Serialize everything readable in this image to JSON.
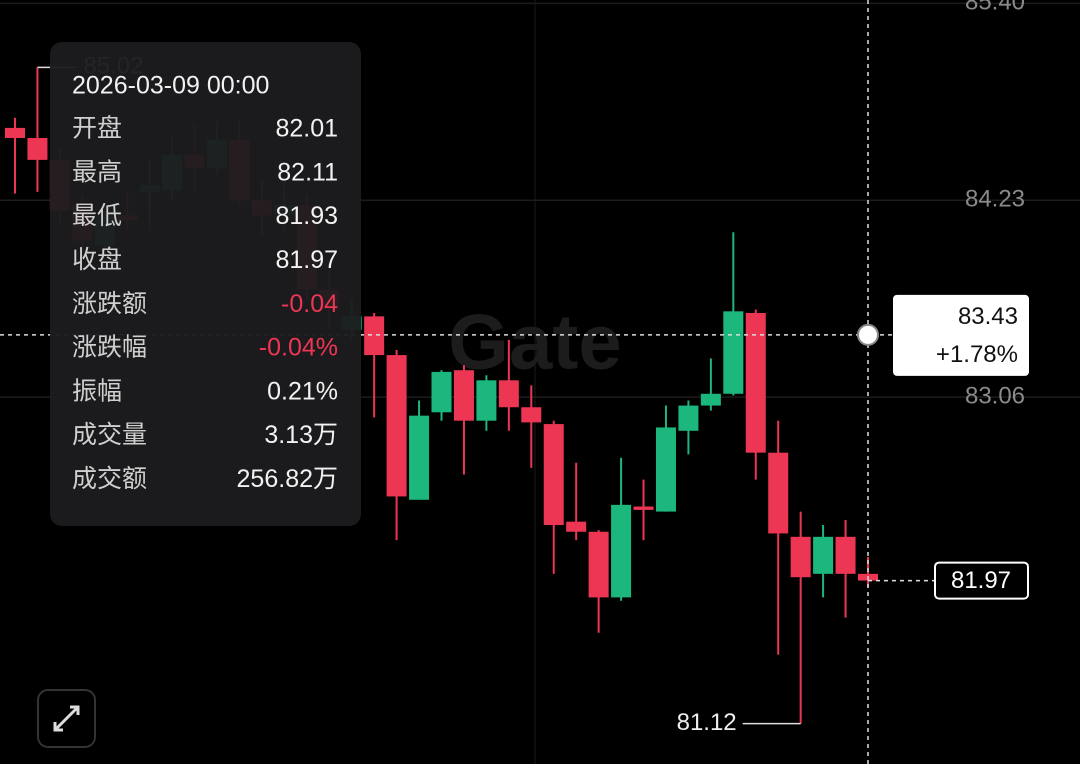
{
  "chart_data": {
    "type": "candlestick",
    "watermark": "Gate",
    "open": [
      84.66,
      84.6,
      84.47,
      84.2,
      83.96,
      84.14,
      84.28,
      84.29,
      84.5,
      84.42,
      84.59,
      84.23,
      84.14,
      84.2,
      83.7,
      83.46,
      83.54,
      83.31,
      82.45,
      82.97,
      83.22,
      82.92,
      83.16,
      83.0,
      82.9,
      82.32,
      82.26,
      81.87,
      82.41,
      82.38,
      82.86,
      83.01,
      83.08,
      83.56,
      82.73,
      82.23,
      82.01,
      82.23,
      82.01
    ],
    "high": [
      84.72,
      85.02,
      84.53,
      84.26,
      84.2,
      84.29,
      84.47,
      84.62,
      84.68,
      84.7,
      84.72,
      84.35,
      84.35,
      84.26,
      83.81,
      83.64,
      83.56,
      83.34,
      83.04,
      83.22,
      83.25,
      83.19,
      83.4,
      83.13,
      82.92,
      82.67,
      82.27,
      82.7,
      82.57,
      83.01,
      83.04,
      83.29,
      84.04,
      83.58,
      82.92,
      82.38,
      82.3,
      82.33,
      82.11
    ],
    "low": [
      84.27,
      84.28,
      84.08,
      83.87,
      83.93,
      84.05,
      84.05,
      84.23,
      84.29,
      84.38,
      84.2,
      84.02,
      84.05,
      83.64,
      83.46,
      83.4,
      82.94,
      82.21,
      82.45,
      82.92,
      82.6,
      82.86,
      82.86,
      82.64,
      82.01,
      82.21,
      81.66,
      81.85,
      82.21,
      82.38,
      82.72,
      82.98,
      83.07,
      82.57,
      81.53,
      81.12,
      81.87,
      81.75,
      81.93
    ],
    "close": [
      84.6,
      84.47,
      84.17,
      83.99,
      84.14,
      84.11,
      84.32,
      84.5,
      84.42,
      84.59,
      84.23,
      84.14,
      84.2,
      83.7,
      83.58,
      83.54,
      83.31,
      82.47,
      82.95,
      83.21,
      82.92,
      83.16,
      83.0,
      82.91,
      82.3,
      82.26,
      81.87,
      82.42,
      82.39,
      82.88,
      83.01,
      83.08,
      83.57,
      82.73,
      82.25,
      81.99,
      82.23,
      82.01,
      81.97
    ],
    "up_color": "#1cb77d",
    "down_color": "#ec3653",
    "ylim": [
      80.88,
      85.42
    ],
    "yticks": [
      {
        "value": 85.4,
        "label": "85.40"
      },
      84.23,
      83.06
    ],
    "grid": true,
    "crosshair_price": 83.43,
    "crosshair_change": "+1.78%",
    "tooltip": {
      "date": "2026-03-09 00:00",
      "rows": [
        {
          "label": "开盘",
          "value": "82.01"
        },
        {
          "label": "最高",
          "value": "82.11"
        },
        {
          "label": "最低",
          "value": "81.93"
        },
        {
          "label": "收盘",
          "value": "81.97"
        },
        {
          "label": "涨跌额",
          "value": "-0.04"
        },
        {
          "label": "涨跌幅",
          "value": "-0.04%"
        },
        {
          "label": "振幅",
          "value": "0.21%"
        },
        {
          "label": "成交量",
          "value": "3.13万"
        },
        {
          "label": "成交额",
          "value": "256.82万"
        }
      ]
    }
  }
}
